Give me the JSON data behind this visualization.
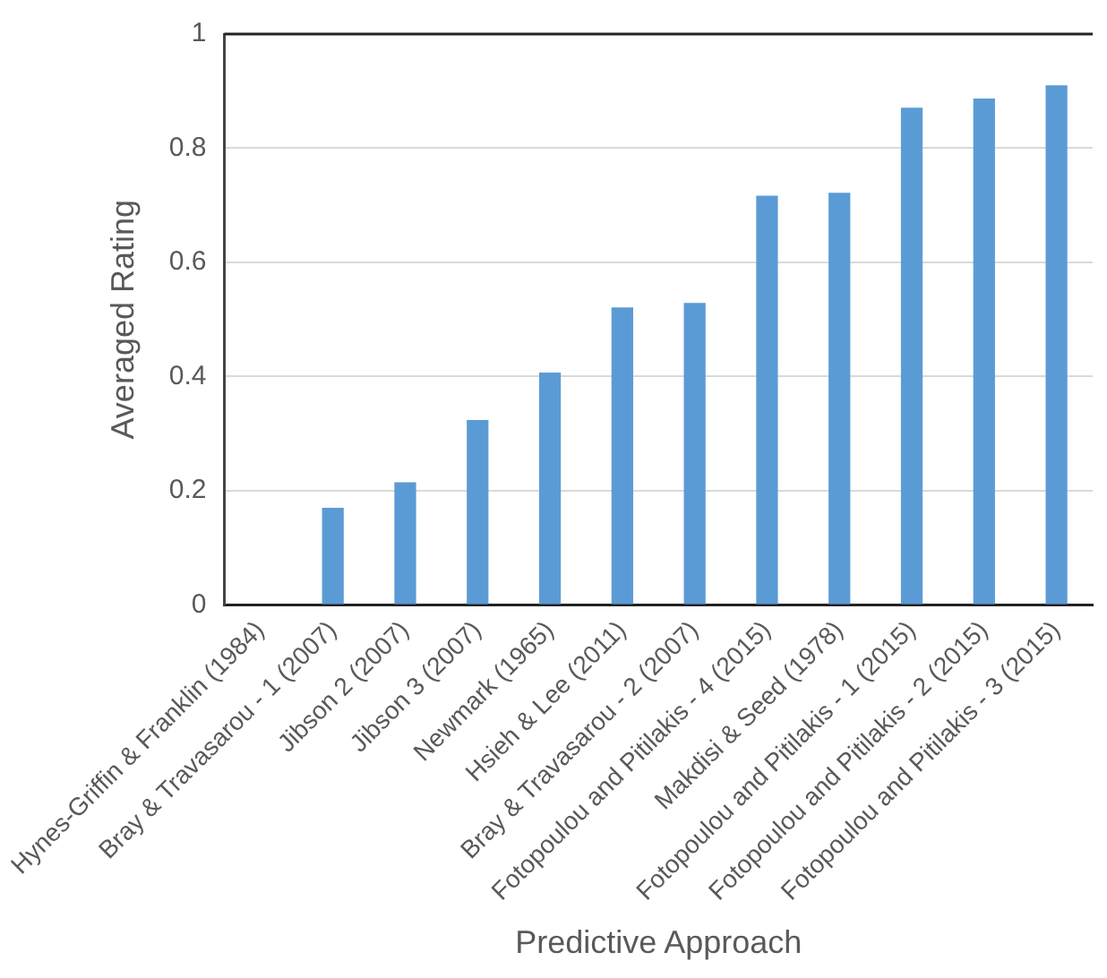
{
  "chart_data": {
    "type": "bar",
    "xlabel": "Predictive Approach",
    "ylabel": "Averaged Rating",
    "categories": [
      "Hynes-Griffin & Franklin (1984)",
      "Bray & Travasarou - 1 (2007)",
      "Jibson 2 (2007)",
      "Jibson 3 (2007)",
      "Newmark (1965)",
      "Hsieh & Lee (2011)",
      "Bray & Travasarou - 2 (2007)",
      "Fotopoulou and Pitilakis - 4 (2015)",
      "Makdisi & Seed (1978)",
      "Fotopoulou and Pitilakis - 1 (2015)",
      "Fotopoulou and Pitilakis - 2 (2015)",
      "Fotopoulou and Pitilakis - 3 (2015)"
    ],
    "values": [
      0,
      0.17,
      0.215,
      0.324,
      0.407,
      0.521,
      0.529,
      0.717,
      0.722,
      0.871,
      0.887,
      0.91
    ],
    "color": "#5b9bd5",
    "ylim": [
      0,
      1
    ],
    "yticks": [
      0,
      0.2,
      0.4,
      0.6,
      0.8,
      1
    ],
    "grid": "y",
    "legend": false
  }
}
